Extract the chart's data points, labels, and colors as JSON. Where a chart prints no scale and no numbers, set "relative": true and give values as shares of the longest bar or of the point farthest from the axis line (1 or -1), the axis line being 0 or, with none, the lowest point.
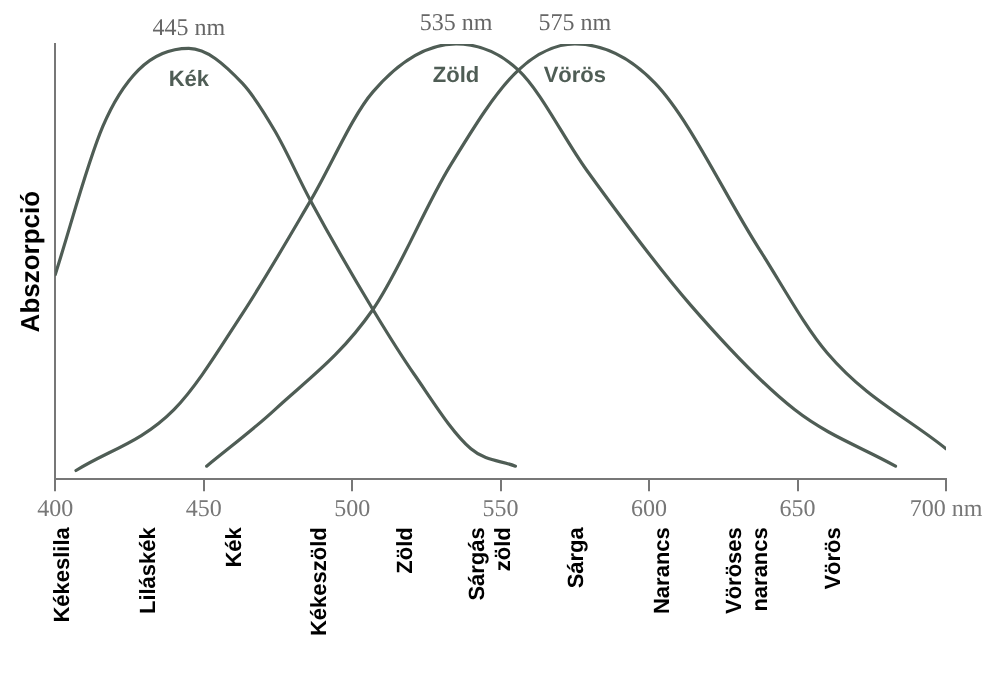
{
  "chart_data": {
    "type": "line",
    "relative": true,
    "ylabel": "Abszorpció",
    "xlim": [
      400,
      700
    ],
    "xticks": [
      400,
      450,
      500,
      550,
      600,
      650,
      {
        "value": 700,
        "label": "700 nm"
      }
    ],
    "grid": false,
    "legend": false,
    "marker": "none",
    "line_style": "solid",
    "series": [
      {
        "name": "Kék",
        "color": "#4f5d55",
        "x": [
          400,
          416,
          428,
          445,
          463,
          474,
          486,
          507,
          521,
          540,
          555
        ],
        "values": [
          0.47,
          0.81,
          0.94,
          0.99,
          0.91,
          0.8,
          0.64,
          0.39,
          0.24,
          0.07,
          0.03
        ]
      },
      {
        "name": "Zöld",
        "color": "#4f5d55",
        "x": [
          407,
          440,
          463,
          486,
          507,
          535,
          556,
          579,
          614,
          649,
          683
        ],
        "values": [
          0.02,
          0.16,
          0.38,
          0.64,
          0.89,
          1,
          0.94,
          0.71,
          0.4,
          0.16,
          0.03
        ]
      },
      {
        "name": "Vörös",
        "color": "#4f5d55",
        "x": [
          451,
          474,
          507,
          533,
          556,
          575,
          602,
          637,
          660,
          700
        ],
        "values": [
          0.03,
          0.16,
          0.39,
          0.72,
          0.94,
          1,
          0.91,
          0.53,
          0.29,
          0.07
        ]
      }
    ],
    "annotations": [
      {
        "text": "445 nm",
        "x": 445,
        "y": 0.99
      },
      {
        "text": "535 nm",
        "x": 535,
        "y": 1
      },
      {
        "text": "575 nm",
        "x": 575,
        "y": 1
      },
      "Kékeslila",
      "Liláskék",
      "Kék",
      "Kékeszöld",
      "Zöld",
      "Sárgás\nzöld",
      "Sárga",
      "Narancs",
      "Vöröses\nnarancs",
      "Vörös"
    ]
  }
}
